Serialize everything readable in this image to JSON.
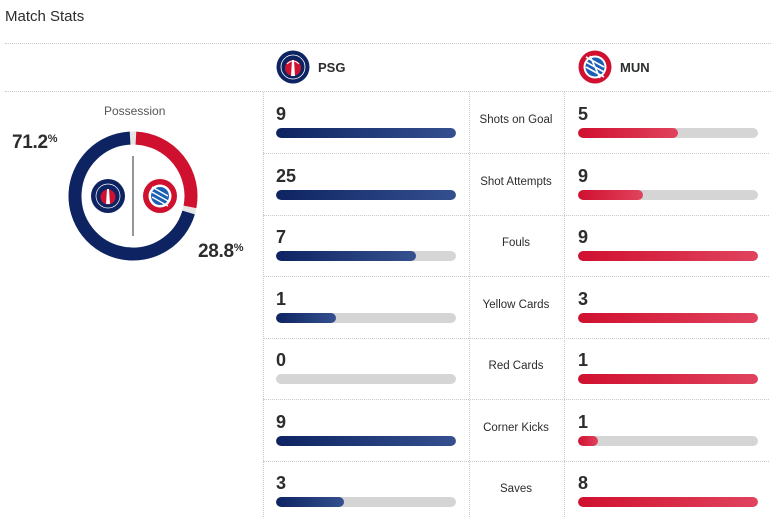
{
  "header": {
    "title": "Match Stats"
  },
  "teams": {
    "home": {
      "name": "PSG",
      "color": "#0e2462",
      "logo_text": "PARIS"
    },
    "away": {
      "name": "MUN",
      "color": "#d0102f",
      "logo_text": "FC BAYERN"
    }
  },
  "possession": {
    "label": "Possession",
    "home_value": "71.2",
    "away_value": "28.8",
    "unit": "%",
    "home_fraction": 0.712,
    "away_fraction": 0.288
  },
  "stats": [
    {
      "label": "Shots on Goal",
      "home": "9",
      "away": "5",
      "home_fill": 1.0,
      "away_fill": 0.556
    },
    {
      "label": "Shot Attempts",
      "home": "25",
      "away": "9",
      "home_fill": 1.0,
      "away_fill": 0.36
    },
    {
      "label": "Fouls",
      "home": "7",
      "away": "9",
      "home_fill": 0.778,
      "away_fill": 1.0
    },
    {
      "label": "Yellow Cards",
      "home": "1",
      "away": "3",
      "home_fill": 0.333,
      "away_fill": 1.0
    },
    {
      "label": "Red Cards",
      "home": "0",
      "away": "1",
      "home_fill": 0.0,
      "away_fill": 1.0
    },
    {
      "label": "Corner Kicks",
      "home": "9",
      "away": "1",
      "home_fill": 1.0,
      "away_fill": 0.111
    },
    {
      "label": "Saves",
      "home": "3",
      "away": "8",
      "home_fill": 0.375,
      "away_fill": 1.0
    }
  ]
}
